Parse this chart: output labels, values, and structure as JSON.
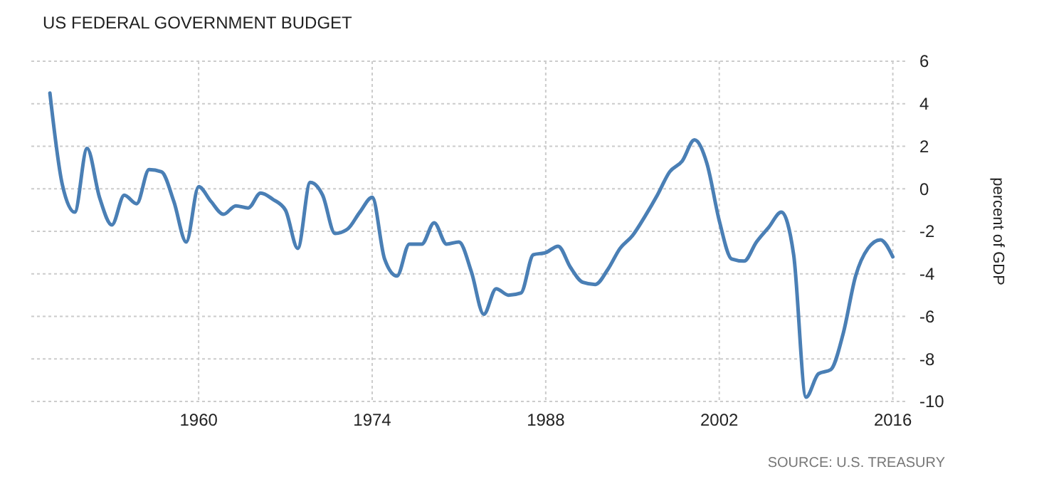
{
  "chart_data": {
    "type": "line",
    "title": "US FEDERAL GOVERNMENT BUDGET",
    "ylabel": "percent of GDP",
    "annotations": [
      "SOURCE: U.S. TREASURY"
    ],
    "x": [
      1948,
      1949,
      1950,
      1951,
      1952,
      1953,
      1954,
      1955,
      1956,
      1957,
      1958,
      1959,
      1960,
      1961,
      1962,
      1963,
      1964,
      1965,
      1966,
      1967,
      1968,
      1969,
      1970,
      1971,
      1972,
      1973,
      1974,
      1975,
      1976,
      1977,
      1978,
      1979,
      1980,
      1981,
      1982,
      1983,
      1984,
      1985,
      1986,
      1987,
      1988,
      1989,
      1990,
      1991,
      1992,
      1993,
      1994,
      1995,
      1996,
      1997,
      1998,
      1999,
      2000,
      2001,
      2002,
      2003,
      2004,
      2005,
      2006,
      2007,
      2008,
      2009,
      2010,
      2011,
      2012,
      2013,
      2014,
      2015,
      2016
    ],
    "series": [
      {
        "color": "#4a7fb5",
        "values": [
          4.5,
          0.2,
          -1.1,
          1.9,
          -0.4,
          -1.7,
          -0.3,
          -0.7,
          0.9,
          0.8,
          -0.6,
          -2.5,
          0.1,
          -0.6,
          -1.2,
          -0.8,
          -0.9,
          -0.2,
          -0.5,
          -1.0,
          -2.8,
          0.3,
          -0.3,
          -2.1,
          -1.9,
          -1.1,
          -0.4,
          -3.3,
          -4.1,
          -2.6,
          -2.6,
          -1.6,
          -2.6,
          -2.5,
          -3.9,
          -5.9,
          -4.7,
          -5.0,
          -4.9,
          -3.1,
          -3.0,
          -2.7,
          -3.7,
          -4.4,
          -4.5,
          -3.8,
          -2.8,
          -2.2,
          -1.3,
          -0.3,
          0.8,
          1.3,
          2.3,
          1.2,
          -1.5,
          -3.3,
          -3.4,
          -2.5,
          -1.8,
          -1.1,
          -3.1,
          -9.8,
          -8.7,
          -8.5,
          -6.8,
          -4.1,
          -2.8,
          -2.4,
          -3.2
        ]
      }
    ],
    "xlim": [
      1946.5,
      2017
    ],
    "xticks": [
      1960,
      1974,
      1988,
      2002,
      2016
    ],
    "ylim": [
      -10,
      6
    ],
    "yticks": [
      -10,
      -8,
      -6,
      -4,
      -2,
      0,
      2,
      4,
      6
    ],
    "grid": true,
    "marker": "none",
    "line_style": "solid"
  }
}
